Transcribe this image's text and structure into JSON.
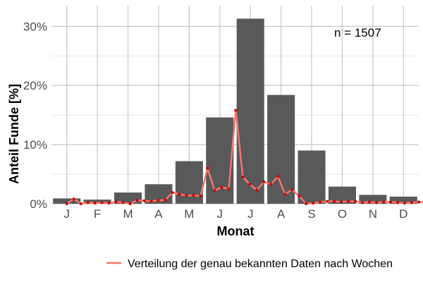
{
  "chart_data": {
    "type": "bar",
    "categories": [
      "J",
      "F",
      "M",
      "A",
      "M",
      "J",
      "J",
      "A",
      "S",
      "O",
      "N",
      "D"
    ],
    "values": [
      0.9,
      0.7,
      1.9,
      3.3,
      7.2,
      14.6,
      31.3,
      18.4,
      9.0,
      2.9,
      1.5,
      1.2
    ],
    "ylabel": "Anteil Funde [%]",
    "xlabel": "Monat",
    "ylim": [
      0,
      33.5
    ],
    "yticks": [
      0,
      10,
      20,
      30
    ],
    "ytick_labels": [
      "0%",
      "10%",
      "20%",
      "30%"
    ],
    "grid": true,
    "annotation": "n = 1507",
    "colors": {
      "bars": "#595959",
      "line": "#f8766d",
      "points": "#cc0000",
      "grid": "#c8c8c8"
    },
    "series": [
      {
        "name": "Verteilung der genau bekannten Daten nach Wochen",
        "type": "line",
        "x": [
          0.5,
          0.73,
          0.96,
          1.19,
          1.42,
          1.65,
          1.88,
          2.11,
          2.34,
          2.57,
          2.8,
          3.03,
          3.26,
          3.49,
          3.72,
          3.95,
          4.18,
          4.41,
          4.64,
          4.87,
          5.1,
          5.33,
          5.56,
          5.79,
          6.02,
          6.25,
          6.48,
          6.71,
          6.94,
          7.17,
          7.4,
          7.63,
          7.86,
          8.09,
          8.32,
          8.55,
          8.78,
          9.01,
          9.24,
          9.47,
          9.7,
          9.93,
          10.16,
          10.39,
          10.62,
          10.85,
          11.08,
          11.31,
          11.54,
          11.77,
          12.0,
          12.23,
          12.46
        ],
        "values": [
          0.0,
          0.8,
          0.0,
          0.2,
          0.1,
          0.2,
          0.1,
          0.3,
          0.2,
          0.0,
          0.6,
          0.5,
          0.4,
          0.6,
          0.6,
          1.9,
          1.6,
          1.4,
          1.4,
          1.3,
          6.0,
          2.2,
          2.8,
          2.5,
          15.8,
          4.5,
          3.3,
          2.3,
          3.7,
          3.3,
          4.6,
          1.6,
          2.4,
          1.3,
          0.0,
          0.1,
          0.3,
          0.4,
          0.4,
          0.3,
          0.4,
          0.4,
          0.2,
          0.3,
          0.2,
          0.3,
          0.3,
          0.2,
          0.1,
          0.2,
          0.3,
          0.2,
          0.3
        ]
      }
    ]
  }
}
